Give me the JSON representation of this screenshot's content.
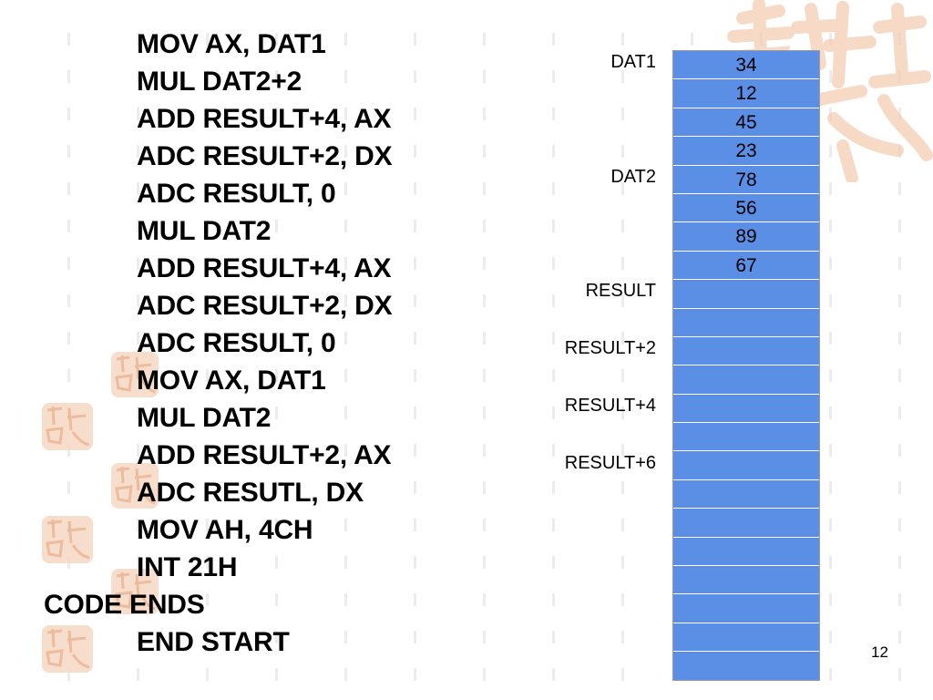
{
  "code": {
    "lines": [
      {
        "text": "MOV AX, DAT1",
        "indent": true
      },
      {
        "text": "MUL DAT2+2",
        "indent": true
      },
      {
        "text": "ADD RESULT+4, AX",
        "indent": true
      },
      {
        "text": "ADC RESULT+2, DX",
        "indent": true
      },
      {
        "text": "ADC RESULT, 0",
        "indent": true
      },
      {
        "text": "MUL DAT2",
        "indent": true
      },
      {
        "text": "ADD RESULT+4, AX",
        "indent": true
      },
      {
        "text": "ADC RESULT+2, DX",
        "indent": true
      },
      {
        "text": "ADC RESULT, 0",
        "indent": true
      },
      {
        "text": "MOV AX, DAT1",
        "indent": true
      },
      {
        "text": "MUL DAT2",
        "indent": true
      },
      {
        "text": "ADD RESULT+2, AX",
        "indent": true
      },
      {
        "text": "ADC RESUTL, DX",
        "indent": true
      },
      {
        "text": "MOV AH, 4CH",
        "indent": true
      },
      {
        "text": "INT 21H",
        "indent": true
      },
      {
        "text": "CODE ENDS",
        "indent": false
      },
      {
        "text": "END START",
        "indent": true
      }
    ]
  },
  "memory": {
    "cells": [
      "34",
      "12",
      "45",
      "23",
      "78",
      "56",
      "89",
      "67",
      "",
      "",
      "",
      "",
      "",
      "",
      "",
      "",
      "",
      "",
      "",
      "",
      "",
      ""
    ],
    "labels": [
      {
        "text": "DAT1",
        "cell": 0
      },
      {
        "text": "DAT2",
        "cell": 4
      },
      {
        "text": "RESULT",
        "cell": 8
      },
      {
        "text": "RESULT+2",
        "cell": 10
      },
      {
        "text": "RESULT+4",
        "cell": 12
      },
      {
        "text": "RESULT+6",
        "cell": 14
      }
    ],
    "cell_color": "#5b8fe6"
  },
  "page_number": "12",
  "colors": {
    "seal": "#f6d8c4",
    "seal_stroke": "#eab08d",
    "dash": "#ececec"
  }
}
